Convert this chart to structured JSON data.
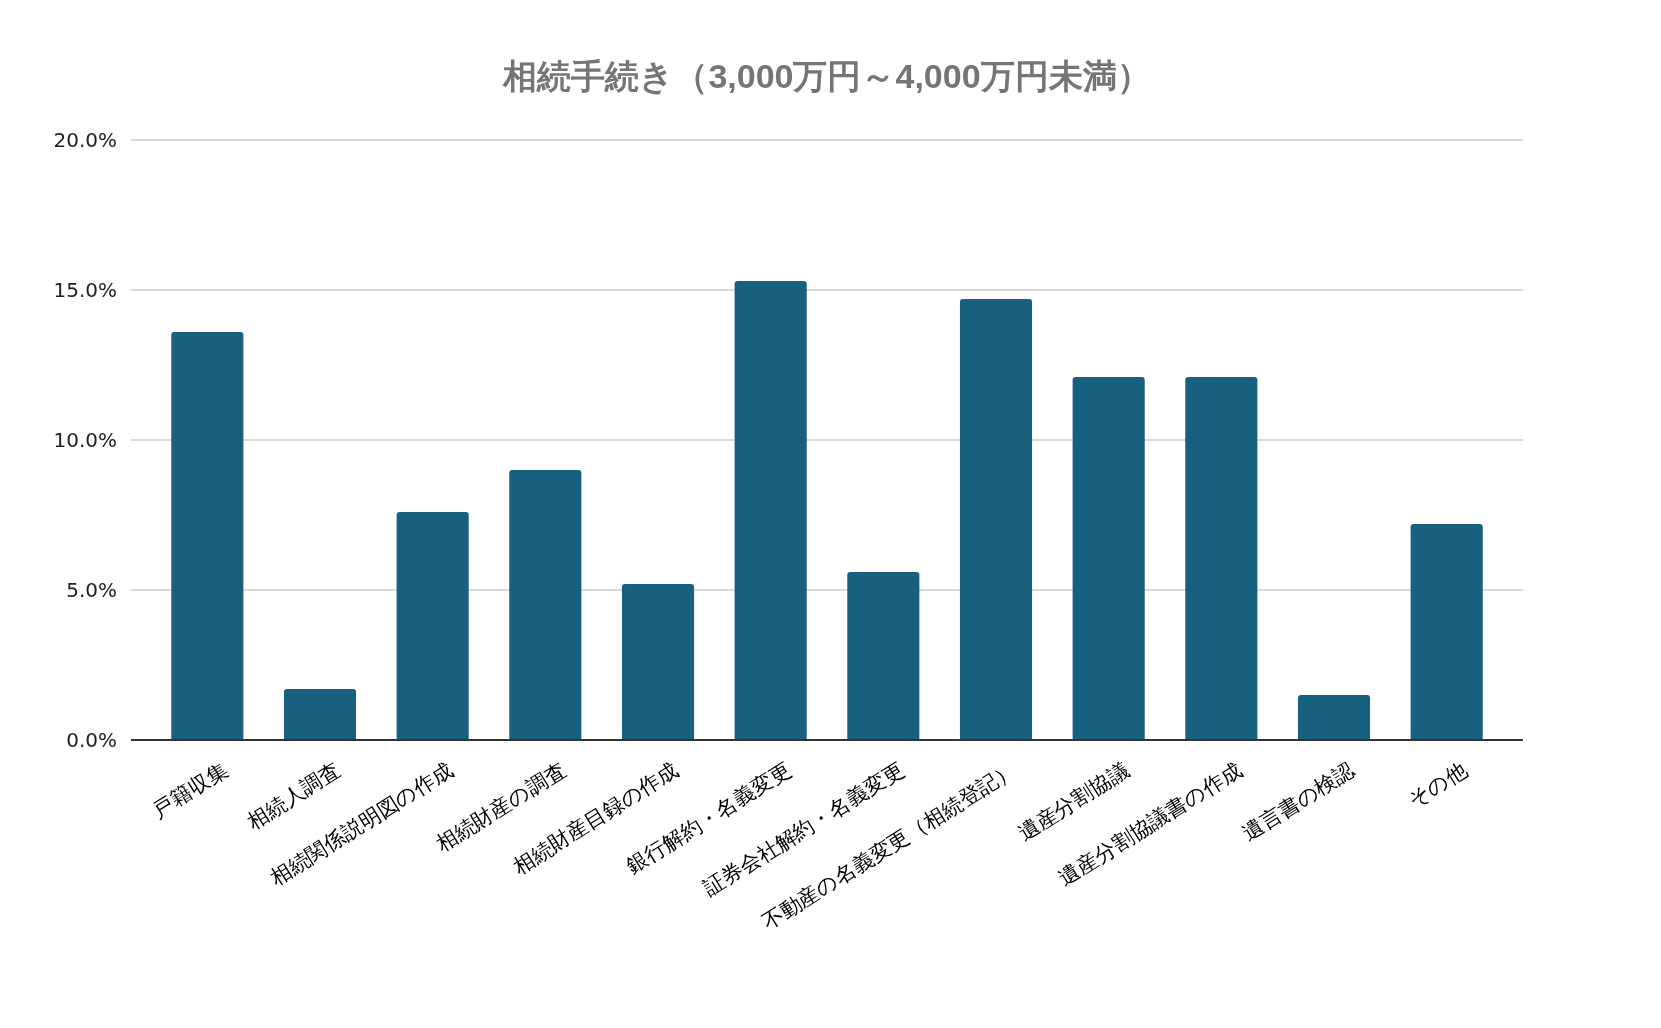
{
  "chart_data": {
    "type": "bar",
    "title": "相続手続き（3,000万円～4,000万円未満）",
    "categories": [
      "戸籍収集",
      "相続人調査",
      "相続関係説明図の作成",
      "相続財産の調査",
      "相続財産目録の作成",
      "銀行解約・名義変更",
      "証券会社解約・名義変更",
      "不動産の名義変更（相続登記）",
      "遺産分割協議",
      "遺産分割協議書の作成",
      "遺言書の検認",
      "その他"
    ],
    "values": [
      13.6,
      1.7,
      7.6,
      9.0,
      5.2,
      15.3,
      5.6,
      14.7,
      12.1,
      12.1,
      1.5,
      7.2
    ],
    "color": "#176080",
    "ylim": [
      0,
      20
    ],
    "yticks": [
      {
        "value": 0,
        "label": "0.0%"
      },
      {
        "value": 5,
        "label": "5.0%"
      },
      {
        "value": 10,
        "label": "10.0%"
      },
      {
        "value": 15,
        "label": "15.0%"
      },
      {
        "value": 20,
        "label": "20.0%"
      }
    ],
    "grid": "y"
  }
}
